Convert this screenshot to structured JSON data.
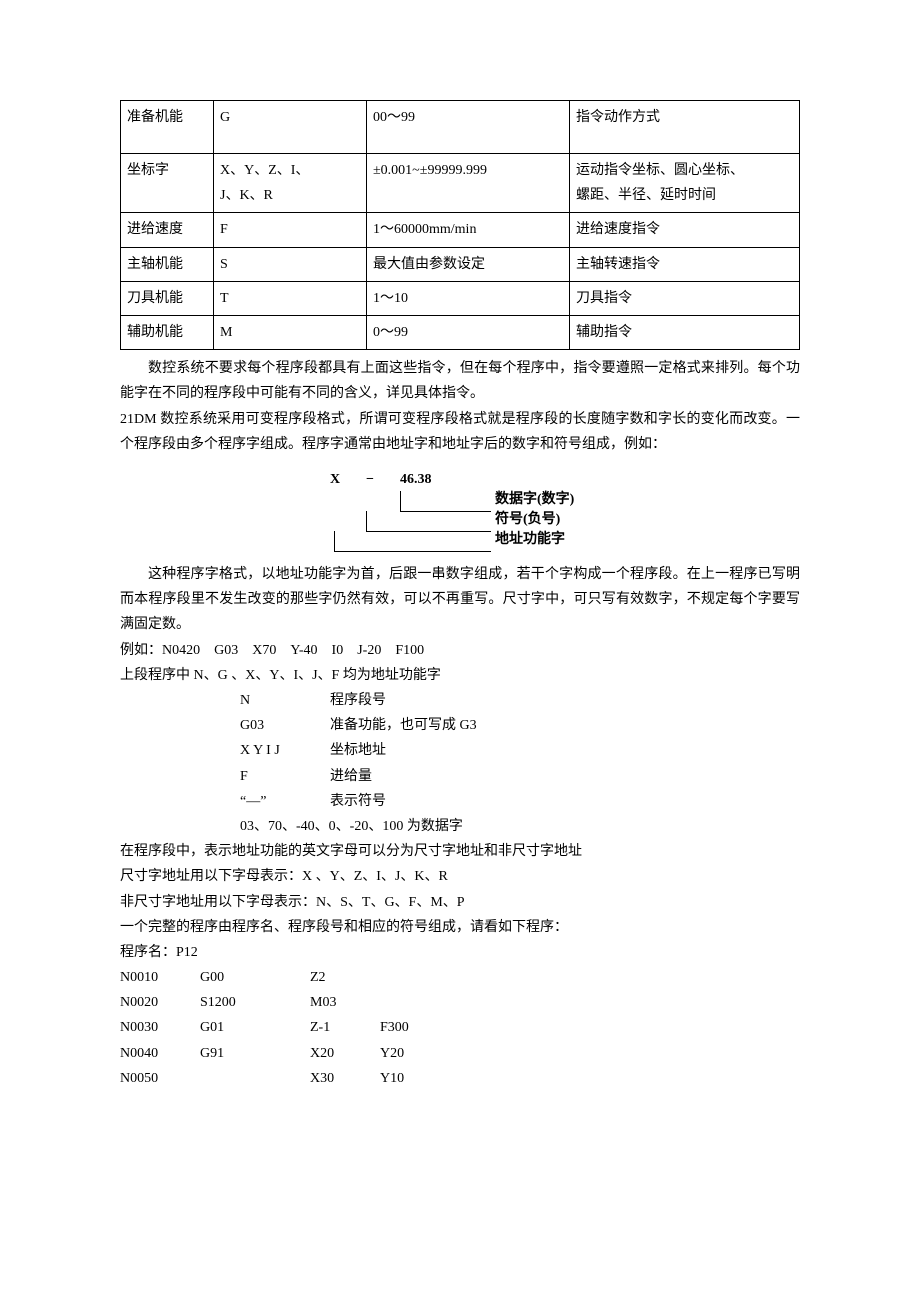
{
  "table": {
    "rows": [
      {
        "c1": "准备机能",
        "c2": "G",
        "c3": "00～99",
        "c4": "指令动作方式",
        "tall": true
      },
      {
        "c1": "坐标字",
        "c2": "X、Y、Z、I、\nJ、K、R",
        "c3": "±0.001~±99999.999",
        "c4": "运动指令坐标、圆心坐标、\n螺距、半径、延时时间",
        "tall": true
      },
      {
        "c1": "进给速度",
        "c2": "F",
        "c3": "1～60000mm/min",
        "c4": "进给速度指令"
      },
      {
        "c1": "主轴机能",
        "c2": "S",
        "c3": "最大值由参数设定",
        "c4": "主轴转速指令"
      },
      {
        "c1": "刀具机能",
        "c2": "T",
        "c3": "1～10",
        "c4": "刀具指令"
      },
      {
        "c1": "辅助机能",
        "c2": "M",
        "c3": "0～99",
        "c4": "辅助指令"
      }
    ]
  },
  "para1": "数控系统不要求每个程序段都具有上面这些指令，但在每个程序中，指令要遵照一定格式来排列。每个功能字在不同的程序段中可能有不同的含义，详见具体指令。",
  "para2": "21DM 数控系统采用可变程序段格式，所谓可变程序段格式就是程序段的长度随字数和字长的变化而改变。一个程序段由多个程序字组成。程序字通常由地址字和地址字后的数字和符号组成，例如：",
  "diagram": {
    "x": "X",
    "dash": "−",
    "num": "46.38",
    "label_data": "数据字(数字)",
    "label_sign": "符号(负号)",
    "label_addr": "地址功能字"
  },
  "para3": "这种程序字格式，以地址功能字为首，后跟一串数字组成，若干个字构成一个程序段。在上一程序已写明而本程序段里不发生改变的那些字仍然有效，可以不再重写。尺寸字中，可只写有效数字，不规定每个字要写满固定数。",
  "line_ex1": "例如：N0420　G03　X70　Y-40　I0　J-20　F100",
  "line_ex2": "上段程序中 N、G 、X、Y、I、J、F 均为地址功能字",
  "defs": [
    {
      "k": "N",
      "v": "程序段号"
    },
    {
      "k": "G03",
      "v": "准备功能，也可写成 G3"
    },
    {
      "k": "X Y I J",
      "v": "坐标地址"
    },
    {
      "k": "F",
      "v": "进给量"
    },
    {
      "k": "“—”",
      "v": "表示符号"
    }
  ],
  "defs_tail": "03、70、-40、0、-20、100 为数据字",
  "line_a": "在程序段中，表示地址功能的英文字母可以分为尺寸字地址和非尺寸字地址",
  "line_b": "尺寸字地址用以下字母表示：X 、Y、Z、I、J、K、R",
  "line_c": "非尺寸字地址用以下字母表示：N、S、T、G、F、M、P",
  "line_d": "一个完整的程序由程序名、程序段号和相应的符号组成，请看如下程序：",
  "prog_name_line": "程序名：P12",
  "prog": [
    {
      "c1": "N0010",
      "c2": "G00",
      "c3": "Z2",
      "c4": ""
    },
    {
      "c1": "N0020",
      "c2": "S1200",
      "c3": "M03",
      "c4": ""
    },
    {
      "c1": "N0030",
      "c2": "G01",
      "c3": "Z-1",
      "c4": "F300"
    },
    {
      "c1": "N0040",
      "c2": "G91",
      "c3": "X20",
      "c4": "Y20"
    },
    {
      "c1": "N0050",
      "c2": "",
      "c3": "X30",
      "c4": "Y10"
    }
  ]
}
